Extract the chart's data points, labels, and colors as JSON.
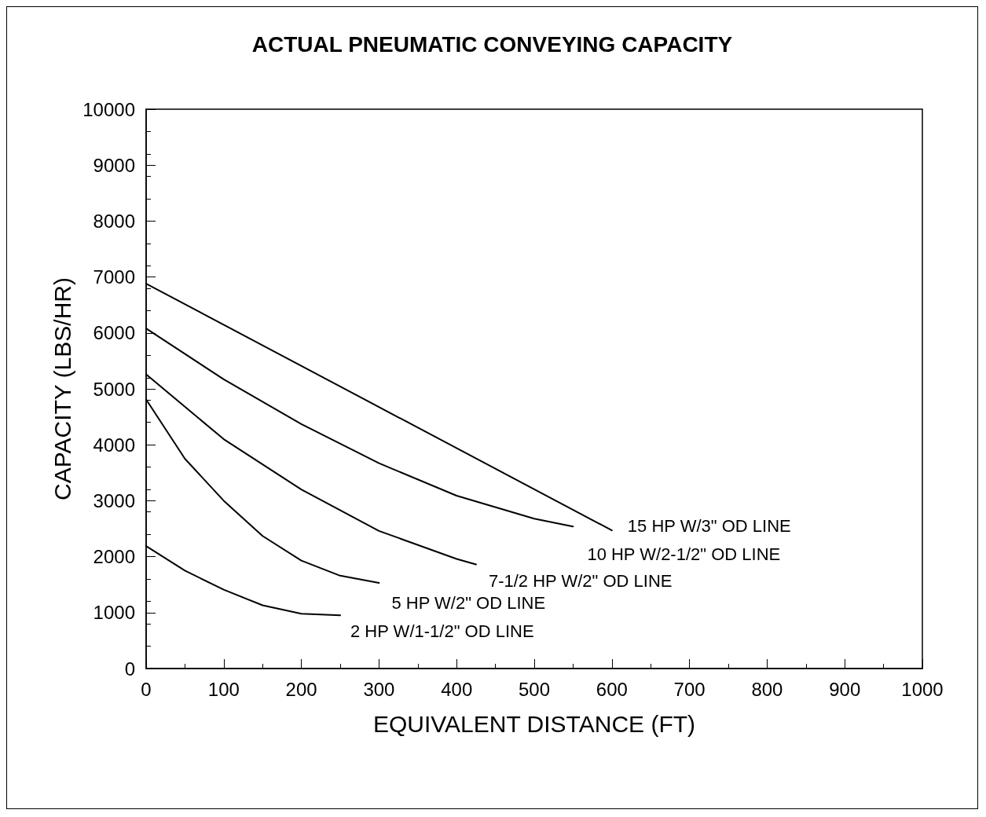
{
  "chart_data": {
    "type": "line",
    "title": "ACTUAL PNEUMATIC CONVEYING CAPACITY",
    "xlabel": "EQUIVALENT DISTANCE (FT)",
    "ylabel": "CAPACITY (LBS/HR)",
    "xlim": [
      0,
      1000
    ],
    "xticks": [
      0,
      100,
      200,
      300,
      400,
      500,
      600,
      700,
      800,
      900,
      1000
    ],
    "ylim": [
      0,
      10000
    ],
    "yticks": [
      0,
      1000,
      2000,
      3000,
      4000,
      5000,
      6000,
      7000,
      8000,
      9000,
      10000
    ],
    "grid": false,
    "legend": false,
    "marker": "none",
    "line_style": "solid",
    "series": [
      {
        "name": "15 HP W/3\" OD LINE",
        "color": "#000000",
        "x": [
          0,
          600
        ],
        "values": [
          6880,
          2470
        ]
      },
      {
        "name": "10 HP W/2-1/2\" OD LINE",
        "color": "#000000",
        "x": [
          0,
          100,
          200,
          300,
          400,
          500,
          550
        ],
        "values": [
          6080,
          5170,
          4370,
          3670,
          3090,
          2680,
          2540
        ]
      },
      {
        "name": "7-1/2 HP W/2\" OD LINE",
        "color": "#000000",
        "x": [
          0,
          100,
          200,
          300,
          400,
          425
        ],
        "values": [
          5260,
          4100,
          3200,
          2460,
          1960,
          1860
        ]
      },
      {
        "name": "5 HP W/2\" OD LINE",
        "color": "#000000",
        "x": [
          0,
          50,
          100,
          150,
          200,
          250,
          300
        ],
        "values": [
          4810,
          3750,
          3000,
          2370,
          1930,
          1660,
          1530
        ]
      },
      {
        "name": "2 HP W/1-1/2\" OD LINE",
        "color": "#000000",
        "x": [
          0,
          50,
          100,
          150,
          200,
          250
        ],
        "values": [
          2190,
          1750,
          1410,
          1130,
          980,
          950
        ]
      }
    ]
  }
}
